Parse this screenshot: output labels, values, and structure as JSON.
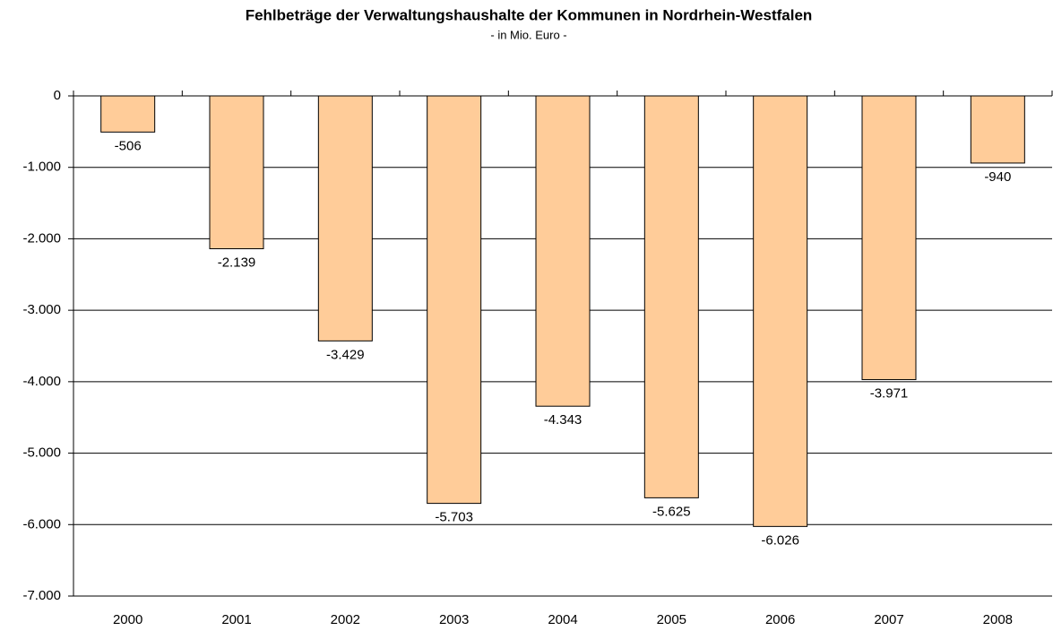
{
  "chart_data": {
    "type": "bar",
    "title": "Fehlbeträge der Verwaltungshaushalte der Kommunen in Nordrhein-Westfalen",
    "subtitle": "- in Mio. Euro -",
    "categories": [
      "2000",
      "2001",
      "2002",
      "2003",
      "2004",
      "2005",
      "2006",
      "2007",
      "2008"
    ],
    "values": [
      -506,
      -2139,
      -3429,
      -5703,
      -4343,
      -5625,
      -6026,
      -3971,
      -940
    ],
    "value_labels": [
      "-506",
      "-2.139",
      "-3.429",
      "-5.703",
      "-4.343",
      "-5.625",
      "-6.026",
      "-3.971",
      "-940"
    ],
    "color": "#ffcc99",
    "ylim": [
      -7000,
      0
    ],
    "yticks": [
      0,
      {
        "value": -1000,
        "label": "-1.000"
      },
      {
        "value": -2000,
        "label": "-2.000"
      },
      {
        "value": -3000,
        "label": "-3.000"
      },
      {
        "value": -4000,
        "label": "-4.000"
      },
      {
        "value": -5000,
        "label": "-5.000"
      },
      {
        "value": -6000,
        "label": "-6.000"
      },
      {
        "value": -7000,
        "label": "-7.000"
      }
    ],
    "grid": true
  }
}
